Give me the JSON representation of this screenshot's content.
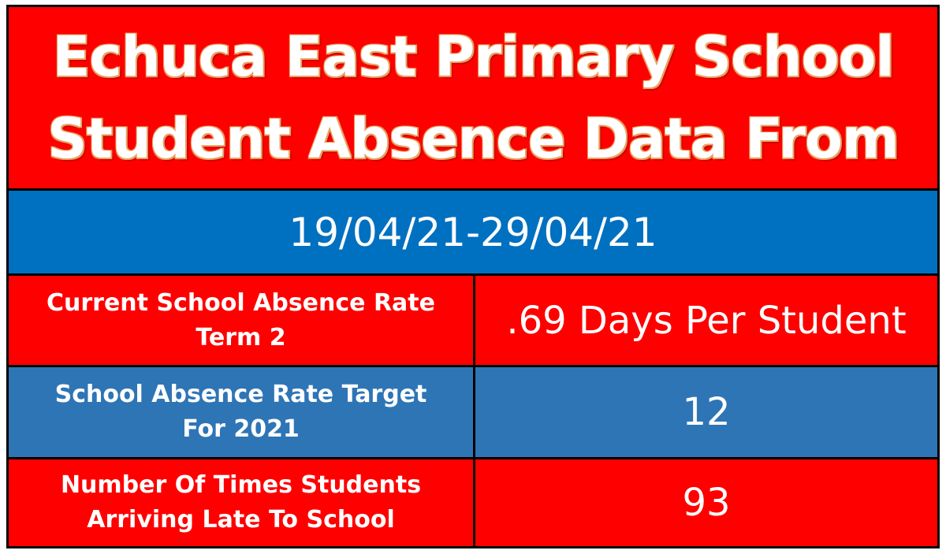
{
  "title": {
    "line1": "Echuca East Primary School",
    "line2": "Student Absence Data From"
  },
  "date_range": "19/04/21-29/04/21",
  "rows": [
    {
      "label_line1": "Current School Absence Rate",
      "label_line2": "Term 2",
      "value": ".69 Days Per Student"
    },
    {
      "label_line1": "School Absence Rate Target",
      "label_line2": "For 2021",
      "value": "12"
    },
    {
      "label_line1": "Number Of Times Students",
      "label_line2": "Arriving Late To School",
      "value": "93"
    }
  ],
  "colors": {
    "red": "#ff0000",
    "date_blue": "#0070c0",
    "row_blue": "#2e75b6",
    "border": "#000000"
  }
}
